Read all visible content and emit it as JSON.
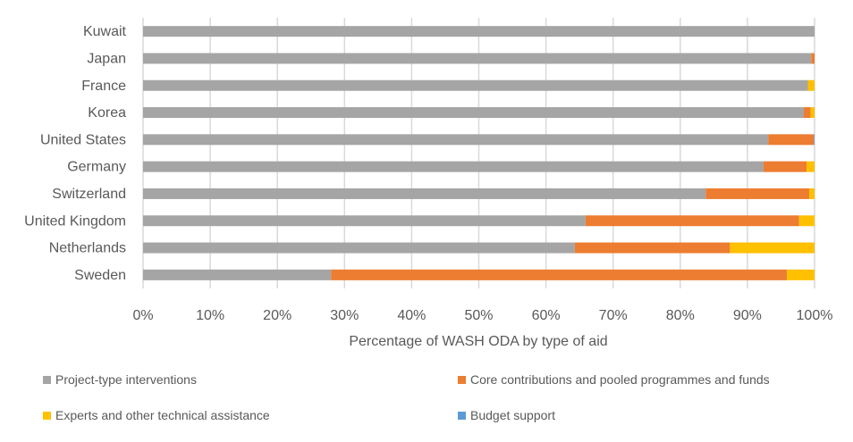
{
  "chart_data": {
    "type": "bar",
    "orientation": "horizontal",
    "stacked": "100%",
    "title": "",
    "xlabel": "Percentage of WASH ODA by type of aid",
    "ylabel": "",
    "xlim": [
      0,
      100
    ],
    "xticks": [
      "0%",
      "10%",
      "20%",
      "30%",
      "40%",
      "50%",
      "60%",
      "70%",
      "80%",
      "90%",
      "100%"
    ],
    "grid": true,
    "legend_position": "bottom",
    "categories": [
      "Kuwait",
      "Japan",
      "France",
      "Korea",
      "United States",
      "Germany",
      "Switzerland",
      "United Kingdom",
      "Netherlands",
      "Sweden"
    ],
    "series": [
      {
        "name": "Project-type interventions",
        "color": "#a5a5a5",
        "values": [
          100,
          99.5,
          99.0,
          98.4,
          93.1,
          92.4,
          83.8,
          65.9,
          64.3,
          28.0
        ]
      },
      {
        "name": "Core contributions and pooled programmes and funds",
        "color": "#ed7d31",
        "values": [
          0,
          0.5,
          0,
          1.0,
          6.8,
          6.4,
          15.4,
          31.8,
          23.1,
          67.9
        ]
      },
      {
        "name": "Experts and other technical assistance",
        "color": "#ffc000",
        "values": [
          0,
          0,
          1.0,
          0.6,
          0,
          1.2,
          0.8,
          2.3,
          12.6,
          4.1
        ]
      },
      {
        "name": "Budget support",
        "color": "#5b9bd5",
        "values": [
          0,
          0,
          0,
          0,
          0.1,
          0,
          0,
          0,
          0,
          0
        ]
      }
    ]
  }
}
